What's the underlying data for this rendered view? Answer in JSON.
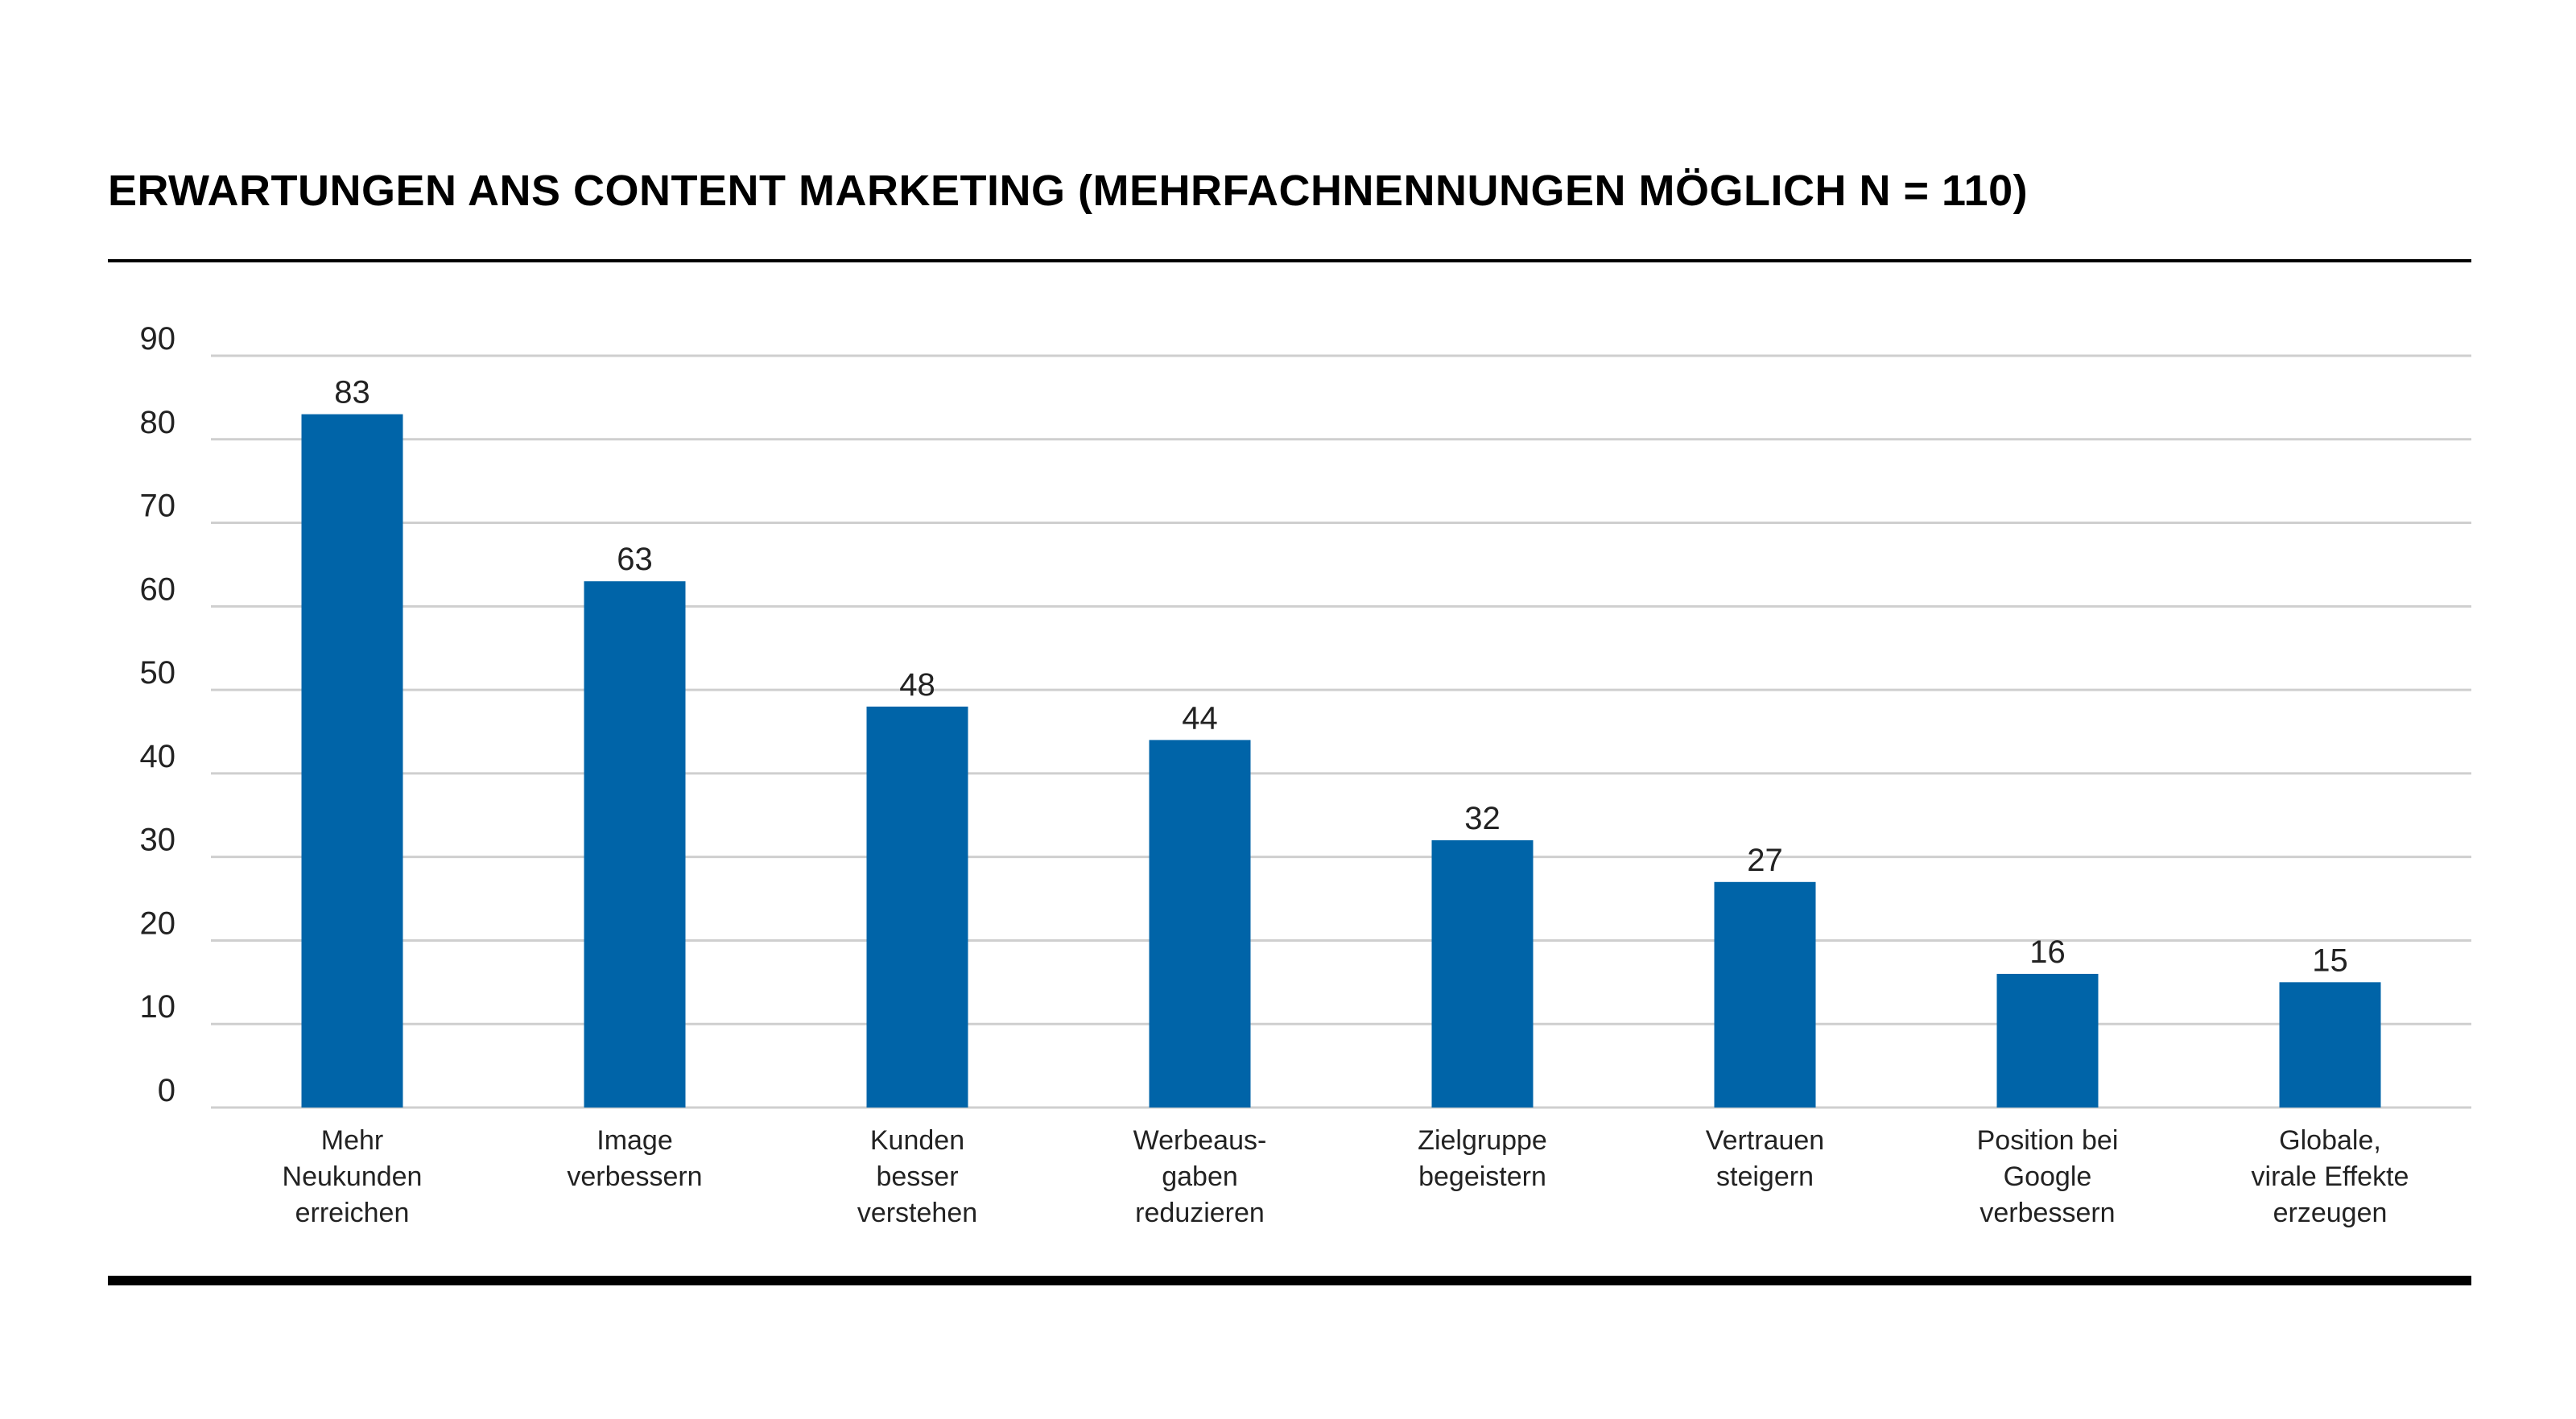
{
  "chart_data": {
    "type": "bar",
    "title": "ERWARTUNGEN ANS CONTENT MARKETING (MEHRFACHNENNUNGEN MÖGLICH N = 110)",
    "xlabel": "",
    "ylabel": "",
    "ylim": [
      0,
      90
    ],
    "yticks": [
      "0",
      "10",
      "20",
      "30",
      "40",
      "50",
      "60",
      "70",
      "80",
      "90"
    ],
    "grid": true,
    "bar_color": "#0064A8",
    "categories": [
      [
        "Mehr",
        "Neukunden",
        "erreichen"
      ],
      [
        "Image",
        "verbessern"
      ],
      [
        "Kunden",
        "besser",
        "verstehen"
      ],
      [
        "Werbeaus-",
        "gaben",
        "reduzieren"
      ],
      [
        "Zielgruppe",
        "begeistern"
      ],
      [
        "Vertrauen",
        "steigern"
      ],
      [
        "Position bei",
        "Google",
        "verbessern"
      ],
      [
        "Globale,",
        "virale Effekte",
        "erzeugen"
      ]
    ],
    "values": [
      83,
      63,
      48,
      44,
      32,
      27,
      16,
      15
    ],
    "value_labels": [
      "83",
      "63",
      "48",
      "44",
      "32",
      "27",
      "16",
      "15"
    ]
  }
}
